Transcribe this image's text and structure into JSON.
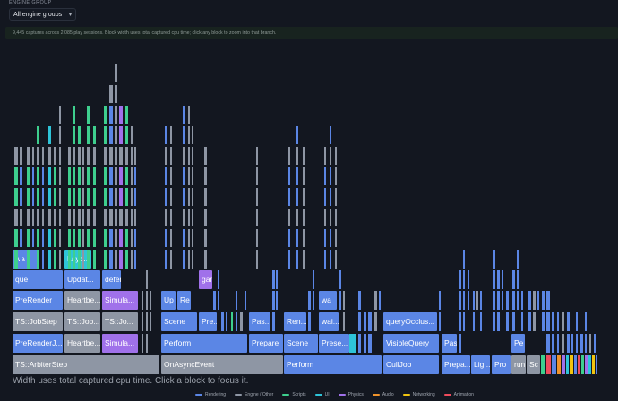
{
  "header": {
    "group_label": "ENGINE GROUP",
    "group_select_value": "All engine groups"
  },
  "info_text": "9,445 captures across 2,085 play sessions. Block width uses total captured cpu time; click any block to zoom into that branch.",
  "colors": {
    "rendering": "#5b86e5",
    "engine": "#8e96a4",
    "scripts": "#3ecf8e",
    "ui": "#2ec4d8",
    "physics": "#a071ea",
    "audio": "#f0932b",
    "networking": "#f1c40f",
    "animation": "#ef4b5c"
  },
  "flame_blocks": [
    {
      "label": "TS::ArbiterStep",
      "category": "engine"
    },
    {
      "label": "OnAsyncEvent",
      "category": "engine"
    },
    {
      "label": "Perform",
      "category": "rendering"
    },
    {
      "label": "CullJob",
      "category": "rendering"
    },
    {
      "label": "Prepa...",
      "category": "rendering"
    },
    {
      "label": "Lig...",
      "category": "rendering"
    },
    {
      "label": "Pro",
      "category": "rendering"
    },
    {
      "label": "run",
      "category": "engine"
    },
    {
      "label": "Sc",
      "category": "engine"
    },
    {
      "label": "PreRenderJ...",
      "category": "rendering"
    },
    {
      "label": "Heartbe...",
      "category": "engine"
    },
    {
      "label": "Simula...",
      "category": "physics"
    },
    {
      "label": "Perform",
      "category": "rendering"
    },
    {
      "label": "Prepare",
      "category": "rendering"
    },
    {
      "label": "Scene",
      "category": "rendering"
    },
    {
      "label": "Prese...",
      "category": "rendering"
    },
    {
      "label": "VisibleQuery",
      "category": "rendering"
    },
    {
      "label": "Pas",
      "category": "rendering"
    },
    {
      "label": "Pe",
      "category": "rendering"
    },
    {
      "label": "TS::JobStep",
      "category": "engine"
    },
    {
      "label": "TS::Job...",
      "category": "engine"
    },
    {
      "label": "TS::Jo...",
      "category": "engine"
    },
    {
      "label": "Scene",
      "category": "rendering"
    },
    {
      "label": "Pre...",
      "category": "rendering"
    },
    {
      "label": "Pas...",
      "category": "rendering"
    },
    {
      "label": "Ren...",
      "category": "rendering"
    },
    {
      "label": "wai...",
      "category": "rendering"
    },
    {
      "label": "queryOcclus...",
      "category": "rendering"
    },
    {
      "label": "PreRender",
      "category": "rendering"
    },
    {
      "label": "Heartbe...",
      "category": "engine"
    },
    {
      "label": "Simula...",
      "category": "physics"
    },
    {
      "label": "Up",
      "category": "rendering"
    },
    {
      "label": "Re",
      "category": "rendering"
    },
    {
      "label": "wa",
      "category": "rendering"
    },
    {
      "label": "que",
      "category": "rendering"
    },
    {
      "label": "Updat...",
      "category": "rendering"
    },
    {
      "label": "defer...",
      "category": "rendering"
    },
    {
      "label": "gam...",
      "category": "physics"
    },
    {
      "label": "wa",
      "category": "rendering"
    },
    {
      "label": "Layo...",
      "category": "ui"
    },
    {
      "label": "$Scr...",
      "category": "scripts"
    }
  ],
  "footer_hint": "Width uses total captured cpu time. Click a block to focus it.",
  "legend": [
    {
      "label": "Rendering",
      "color": "#5b86e5"
    },
    {
      "label": "Engine / Other",
      "color": "#8e96a4"
    },
    {
      "label": "Scripts",
      "color": "#3ecf8e"
    },
    {
      "label": "UI",
      "color": "#2ec4d8"
    },
    {
      "label": "Physics",
      "color": "#a071ea"
    },
    {
      "label": "Audio",
      "color": "#f0932b"
    },
    {
      "label": "Networking",
      "color": "#f1c40f"
    },
    {
      "label": "Animation",
      "color": "#ef4b5c"
    }
  ]
}
